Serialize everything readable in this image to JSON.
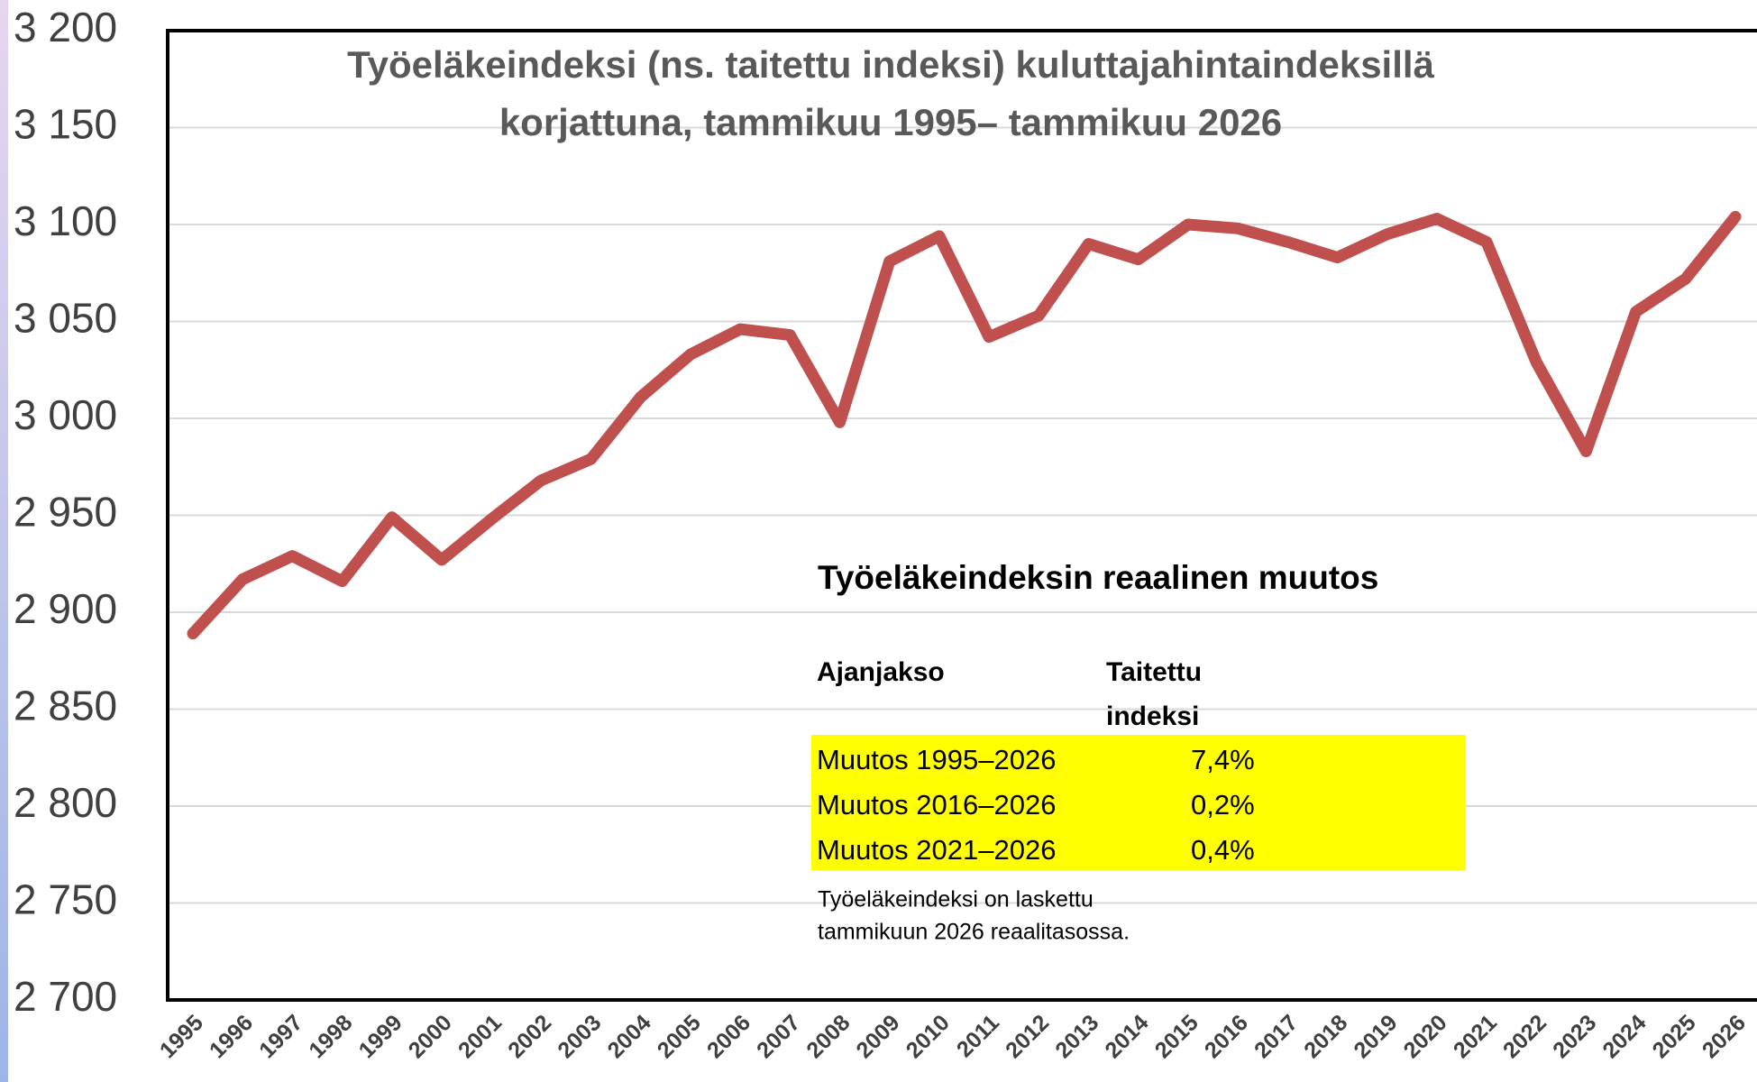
{
  "chart_data": {
    "type": "line",
    "title": [
      "Työeläkeindeksi (ns. taitettu indeksi) kuluttajahintaindeksillä",
      "korjattuna, tammikuu 1995– tammikuu 2026"
    ],
    "categories": [
      "1995",
      "1996",
      "1997",
      "1998",
      "1999",
      "2000",
      "2001",
      "2002",
      "2003",
      "2004",
      "2005",
      "2006",
      "2007",
      "2008",
      "2009",
      "2010",
      "2011",
      "2012",
      "2013",
      "2014",
      "2015",
      "2016",
      "2017",
      "2018",
      "2019",
      "2020",
      "2021",
      "2022",
      "2023",
      "2024",
      "2025",
      "2026"
    ],
    "series": [
      {
        "color": "#c0504d",
        "values": [
          2889,
          2917,
          2929,
          2916,
          2949,
          2927,
          2948,
          2968,
          2979,
          3011,
          3033,
          3046,
          3043,
          2998,
          3081,
          3094,
          3042,
          3053,
          3090,
          3082,
          3100,
          3098,
          3091,
          3083,
          3095,
          3103,
          3091,
          3029,
          2983,
          3055,
          3072,
          3104
        ]
      }
    ],
    "ylim": [
      2700,
      3200
    ],
    "yticks": [
      {
        "value": 2700,
        "label": "2 700"
      },
      {
        "value": 2750,
        "label": "2 750"
      },
      {
        "value": 2800,
        "label": "2 800"
      },
      {
        "value": 2850,
        "label": "2 850"
      },
      {
        "value": 2900,
        "label": "2 900"
      },
      {
        "value": 2950,
        "label": "2 950"
      },
      {
        "value": 3000,
        "label": "3 000"
      },
      {
        "value": 3050,
        "label": "3 050"
      },
      {
        "value": 3100,
        "label": "3 100"
      },
      {
        "value": 3150,
        "label": "3 150"
      },
      {
        "value": 3200,
        "label": "3 200"
      }
    ],
    "grid": true,
    "inset": {
      "title": "Työeläkeindeksin reaalinen muutos",
      "headers": [
        [
          "Ajanjakso"
        ],
        [
          "Taitettu",
          "indeksi"
        ]
      ],
      "rows": [
        [
          "Muutos 1995–2026",
          "7,4%"
        ],
        [
          "Muutos 2016–2026",
          "0,2%"
        ],
        [
          "Muutos 2021–2026",
          "0,4%"
        ]
      ],
      "highlight": "#ffff00",
      "note": [
        "Työeläkeindeksi on laskettu",
        "tammikuun 2026 reaalitasossa."
      ]
    }
  }
}
